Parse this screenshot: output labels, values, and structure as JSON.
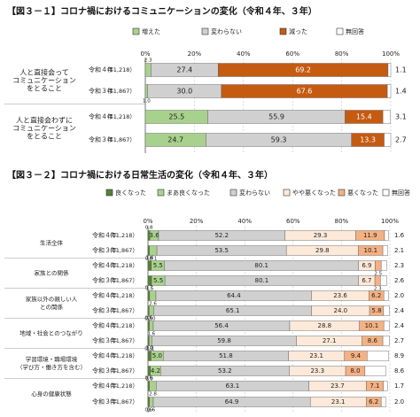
{
  "chart_data": [
    {
      "type": "bar",
      "orientation": "horizontal",
      "stacked": true,
      "title": "【図３－１】コロナ禍におけるコミュニケーションの変化（令和４年、３年）",
      "xlim": [
        0,
        100
      ],
      "x_ticks": [
        "0%",
        "20%",
        "40%",
        "60%",
        "80%",
        "100%"
      ],
      "legend_position": "top",
      "series": [
        {
          "name": "増えた",
          "color": "#a9d18e"
        },
        {
          "name": "変わらない",
          "color": "#d0d0d0"
        },
        {
          "name": "減った",
          "color": "#c55a11"
        },
        {
          "name": "無回答",
          "color": "#ffffff"
        }
      ],
      "groups": [
        {
          "label_lines": [
            "人と直接会って",
            "コミュニケーション",
            "をとること"
          ],
          "rows": [
            {
              "year": "令和４年",
              "n": "（11,218）",
              "values": [
                2.3,
                27.4,
                69.2,
                1.1
              ],
              "labels": [
                "2.3",
                "27.4",
                "69.2",
                "1.1"
              ]
            },
            {
              "year": "令和３年",
              "n": "（11,867）",
              "values": [
                1.0,
                30.0,
                67.6,
                1.4
              ],
              "labels": [
                "1.0",
                "30.0",
                "67.6",
                "1.4"
              ]
            }
          ]
        },
        {
          "label_lines": [
            "人と直接会わずに",
            "コミュニケーション",
            "をとること"
          ],
          "rows": [
            {
              "year": "令和４年",
              "n": "（11,218）",
              "values": [
                25.5,
                55.9,
                15.4,
                3.1
              ],
              "labels": [
                "25.5",
                "55.9",
                "15.4",
                "3.1"
              ]
            },
            {
              "year": "令和３年",
              "n": "（11,867）",
              "values": [
                24.7,
                59.3,
                13.3,
                2.7
              ],
              "labels": [
                "24.7",
                "59.3",
                "13.3",
                "2.7"
              ]
            }
          ]
        }
      ]
    },
    {
      "type": "bar",
      "orientation": "horizontal",
      "stacked": true,
      "title": "【図３－２】コロナ禍における日常生活の変化（令和４年、３年）",
      "xlim": [
        0,
        100
      ],
      "x_ticks": [
        "0%",
        "20%",
        "40%",
        "60%",
        "80%",
        "100%"
      ],
      "legend_position": "top",
      "series": [
        {
          "name": "良くなった",
          "color": "#548235"
        },
        {
          "name": "まあ良くなった",
          "color": "#a9d18e"
        },
        {
          "name": "変わらない",
          "color": "#d0d0d0"
        },
        {
          "name": "やや悪くなった",
          "color": "#fde9d9"
        },
        {
          "name": "悪くなった",
          "color": "#f4b183"
        },
        {
          "name": "無回答",
          "color": "#ffffff"
        }
      ],
      "groups": [
        {
          "label_lines": [
            "生活全体"
          ],
          "rows": [
            {
              "year": "令和４年",
              "n": "（11,218）",
              "values": [
                0.8,
                3.6,
                52.2,
                29.3,
                11.9,
                1.6
              ],
              "labels": [
                "0.8",
                "3.6",
                "52.2",
                "29.3",
                "11.9",
                "1.6"
              ]
            },
            {
              "year": "令和３年",
              "n": "（11,867）",
              "values": [
                0.6,
                3.1,
                53.5,
                29.8,
                10.1,
                2.1
              ],
              "labels": [
                "0.6",
                "3.1",
                "53.5",
                "29.8",
                "10.1",
                "2.1"
              ]
            }
          ]
        },
        {
          "label_lines": [
            "家族との関係"
          ],
          "rows": [
            {
              "year": "令和４年",
              "n": "（11,218）",
              "values": [
                1.4,
                5.5,
                80.1,
                6.9,
                2.5,
                2.3
              ],
              "labels": [
                "1.4",
                "5.5",
                "80.1",
                "6.9",
                "2.5",
                "2.3"
              ]
            },
            {
              "year": "令和３年",
              "n": "（11,867）",
              "values": [
                1.5,
                5.5,
                80.1,
                6.7,
                2.3,
                2.6
              ],
              "labels": [
                "1.5",
                "5.5",
                "80.1",
                "6.7",
                "2.3",
                "2.6"
              ]
            }
          ]
        },
        {
          "label_lines": [
            "家族以外の親しい人",
            "との関係"
          ],
          "rows": [
            {
              "year": "令和４年",
              "n": "（11,218）",
              "values": [
                0.7,
                2.6,
                64.4,
                23.6,
                6.2,
                2.0
              ],
              "labels": [
                "0.7",
                "2.6",
                "64.4",
                "23.6",
                "6.2",
                "2.0"
              ]
            },
            {
              "year": "令和３年",
              "n": "（11,867）",
              "values": [
                0.5,
                2.0,
                65.1,
                24.0,
                5.8,
                2.4
              ],
              "labels": [
                "0.5",
                "2.0",
                "65.1",
                "24.0",
                "5.8",
                "2.4"
              ]
            }
          ]
        },
        {
          "label_lines": [
            "地域・社会とのつながり"
          ],
          "rows": [
            {
              "year": "令和４年",
              "n": "（11,218）",
              "values": [
                0.6,
                1.6,
                56.4,
                28.8,
                10.1,
                2.4
              ],
              "labels": [
                "0.6",
                "1.6",
                "56.4",
                "28.8",
                "10.1",
                "2.4"
              ]
            },
            {
              "year": "令和３年",
              "n": "（11,867）",
              "values": [
                0.5,
                1.1,
                59.8,
                27.1,
                8.6,
                2.7
              ],
              "labels": [
                "0.5",
                "1.1",
                "59.8",
                "27.1",
                "8.6",
                "2.7"
              ]
            }
          ]
        },
        {
          "label_lines": [
            "学習環境・職場環境",
            "（学び方・働き方を含む）"
          ],
          "rows": [
            {
              "year": "令和４年",
              "n": "（11,218）",
              "values": [
                1.3,
                5.0,
                51.8,
                23.1,
                9.4,
                8.9
              ],
              "labels": [
                "1.3",
                "5.0",
                "51.8",
                "23.1",
                "9.4",
                "8.9"
              ]
            },
            {
              "year": "令和３年",
              "n": "（11,867）",
              "values": [
                1.0,
                4.2,
                53.2,
                23.3,
                8.0,
                8.6
              ],
              "labels": [
                "1.0",
                "4.2",
                "53.2",
                "23.3",
                "8.0",
                "8.6"
              ]
            }
          ]
        },
        {
          "label_lines": [
            "心身の健康状態"
          ],
          "rows": [
            {
              "year": "令和４年",
              "n": "（11,218）",
              "values": [
                0.6,
                2.8,
                63.1,
                23.7,
                7.1,
                1.7
              ],
              "labels": [
                "0.6",
                "2.8",
                "63.1",
                "23.7",
                "7.1",
                "1.7"
              ]
            },
            {
              "year": "令和３年",
              "n": "（11,867）",
              "values": [
                0.6,
                1.6,
                64.9,
                23.1,
                6.2,
                2.0
              ],
              "labels": [
                "0.6",
                "1.6",
                "64.9",
                "23.1",
                "6.2",
                "2.0"
              ]
            }
          ]
        }
      ]
    }
  ]
}
